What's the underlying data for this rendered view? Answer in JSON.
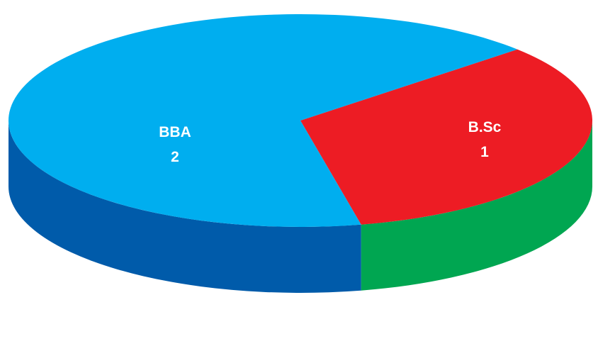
{
  "chart_data": {
    "type": "pie",
    "title": "",
    "categories": [
      "BBA",
      "B.Sc"
    ],
    "values": [
      2,
      1
    ],
    "colors": {
      "BBA": {
        "top": "#00AEEF",
        "side": "#005BAA"
      },
      "B.Sc": {
        "top": "#ED1C24",
        "side": "#00A651"
      }
    },
    "style": "3d",
    "legend": "none",
    "data_labels": [
      {
        "category": "BBA",
        "value": "2"
      },
      {
        "category": "B.Sc",
        "value": "1"
      }
    ]
  }
}
